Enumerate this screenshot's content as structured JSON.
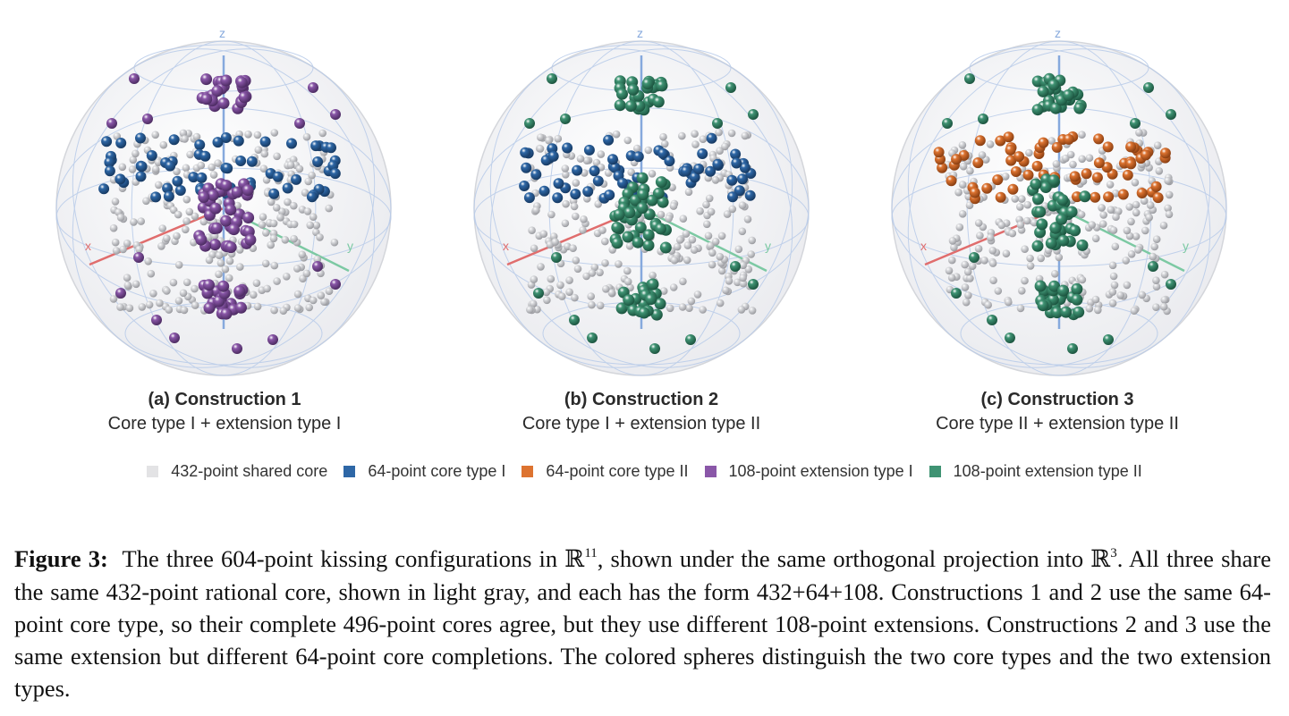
{
  "colors": {
    "core": "#e3e3e5",
    "core_type_1": "#2e67a6",
    "core_type_2": "#dd7330",
    "extension_type_1": "#8a57a8",
    "extension_type_2": "#3f9373",
    "axis_x": "#e06d6d",
    "axis_y": "#7cc9a3",
    "axis_z": "#86a9dd"
  },
  "panels": [
    {
      "id": "a",
      "title": "(a) Construction 1",
      "subtitle": "Core type I + extension type I",
      "core": "core_type_1",
      "extension": "extension_type_1"
    },
    {
      "id": "b",
      "title": "(b) Construction 2",
      "subtitle": "Core type I + extension type II",
      "core": "core_type_1",
      "extension": "extension_type_2"
    },
    {
      "id": "c",
      "title": "(c) Construction 3",
      "subtitle": "Core type II + extension type II",
      "core": "core_type_2",
      "extension": "extension_type_2"
    }
  ],
  "axis_labels": {
    "x": "x",
    "y": "y",
    "z": "z"
  },
  "legend": [
    {
      "label": "432-point shared core",
      "color": "#e3e3e5"
    },
    {
      "label": "64-point core type I",
      "color": "#2e67a6"
    },
    {
      "label": "64-point core type II",
      "color": "#dd7330"
    },
    {
      "label": "108-point extension type I",
      "color": "#8a57a8"
    },
    {
      "label": "108-point extension type II",
      "color": "#3f9373"
    }
  ],
  "caption": {
    "label": "Figure 3:",
    "part1": "The three 604-point kissing configurations in ",
    "field": "ℝ",
    "dim1": "11",
    "part2": ", shown under the same orthogonal projection into ",
    "dim2": "3",
    "part3": ". All three share the same 432-point rational core, shown in light gray, and each has the form 432+64+108. Constructions 1 and 2 use the same 64-point core type, so their complete 496-point cores agree, but they use different 108-point extensions. Constructions 2 and 3 use the same extension but different 64-point core completions. The colored spheres distinguish the two core types and the two extension types."
  }
}
